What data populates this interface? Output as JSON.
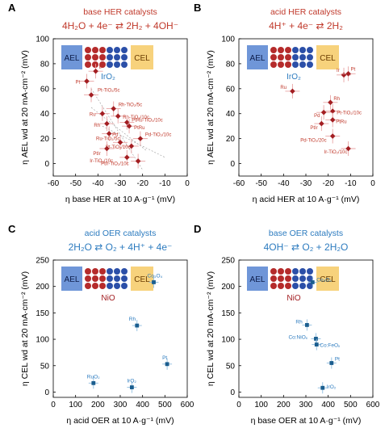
{
  "colors": {
    "her_accent": "#c0392b",
    "oer_accent": "#2c7bbf",
    "her_marker": "#a31e22",
    "oer_marker": "#1b5e8f",
    "her_error": "#e8a3a3",
    "oer_error": "#8fbde0",
    "axis": "#000000",
    "ael_box": "#6f96d8",
    "cel_box": "#f7d27c",
    "membrane_red": "#b52b2b",
    "membrane_blue": "#2b4fa8"
  },
  "chart_data": [
    {
      "panel": "A",
      "type": "scatter",
      "title": "base HER catalysts",
      "equation": "4H₂O + 4e⁻ ⇄ 2H₂ + 4OH⁻",
      "xlabel": "η base HER at 10 A·g⁻¹ (mV)",
      "ylabel": "η AEL wd at 20 mA·cm⁻² (mV)",
      "xlim": [
        -60,
        0
      ],
      "ylim": [
        -10,
        100
      ],
      "xticks": [
        "-60",
        "-50",
        "-40",
        "-30",
        "-20",
        "-10",
        "0"
      ],
      "yticks": [
        "0",
        "20",
        "40",
        "60",
        "80",
        "100"
      ],
      "schematic": {
        "left": "AEL",
        "right": "CEL",
        "catalyst": "IrO₂"
      },
      "points": [
        {
          "label": "Ir",
          "x": -41,
          "y": 74
        },
        {
          "label": "Pt",
          "x": -45,
          "y": 66
        },
        {
          "label": "Pt-TiO₂/5c",
          "x": -43,
          "y": 55
        },
        {
          "label": "Rh-TiO₂/5c",
          "x": -33,
          "y": 44
        },
        {
          "label": "Ru",
          "x": -38,
          "y": 40
        },
        {
          "label": "Rh-TiO₂/10c",
          "x": -31,
          "y": 38
        },
        {
          "label": "PtRu-TiO₂/10c",
          "x": -27,
          "y": 33
        },
        {
          "label": "Rh",
          "x": -36,
          "y": 32
        },
        {
          "label": "PtRu",
          "x": -26,
          "y": 30
        },
        {
          "label": "Pd",
          "x": -35,
          "y": 24
        },
        {
          "label": "Pd-TiO₂/10c",
          "x": -21,
          "y": 20
        },
        {
          "label": "Ru-TiO₂/5c",
          "x": -30,
          "y": 17
        },
        {
          "label": "Pt-TiO₂/10c",
          "x": -25,
          "y": 14
        },
        {
          "label": "PtIr",
          "x": -36,
          "y": 12
        },
        {
          "label": "Ir-TiO₂/10c",
          "x": -27,
          "y": 5
        },
        {
          "label": "PtIr-TiO₂/10c",
          "x": -22,
          "y": 2
        }
      ]
    },
    {
      "panel": "B",
      "type": "scatter",
      "title": "acid HER catalysts",
      "equation": "4H⁺ + 4e⁻ ⇄ 2H₂",
      "xlabel": "η acid HER at 10 A·g⁻¹ (mV)",
      "ylabel": "η AEL wd at 20 mA·cm⁻² (mV)",
      "xlim": [
        -60,
        0
      ],
      "ylim": [
        -10,
        100
      ],
      "xticks": [
        "-60",
        "-50",
        "-40",
        "-30",
        "-20",
        "-10",
        "0"
      ],
      "yticks": [
        "0",
        "20",
        "40",
        "60",
        "80",
        "100"
      ],
      "schematic": {
        "left": "AEL",
        "right": "CEL",
        "catalyst": "IrO₂"
      },
      "points": [
        {
          "label": "Ir",
          "x": -13,
          "y": 71
        },
        {
          "label": "Pt",
          "x": -11,
          "y": 72
        },
        {
          "label": "Ru",
          "x": -36,
          "y": 58
        },
        {
          "label": "Rh",
          "x": -19,
          "y": 49
        },
        {
          "label": "Pd",
          "x": -22,
          "y": 41
        },
        {
          "label": "Pt-TiO₂/10c",
          "x": -18,
          "y": 42
        },
        {
          "label": "PtRu",
          "x": -18,
          "y": 35
        },
        {
          "label": "PtIr",
          "x": -23,
          "y": 32
        },
        {
          "label": "Pd-TiO₂/20c",
          "x": -18,
          "y": 22
        },
        {
          "label": "Ir-TiO₂/10c",
          "x": -11,
          "y": 12
        }
      ]
    },
    {
      "panel": "C",
      "type": "scatter",
      "title": "acid OER catalysts",
      "equation": "2H₂O ⇄ O₂ + 4H⁺ + 4e⁻",
      "xlabel": "η acid OER at 10 A·g⁻¹ (mV)",
      "ylabel": "η CEL wd at 20 mA·cm⁻² (mV)",
      "xlim": [
        0,
        600
      ],
      "ylim": [
        -10,
        250
      ],
      "xticks": [
        "0",
        "100",
        "200",
        "300",
        "400",
        "500",
        "600"
      ],
      "yticks": [
        "0",
        "50",
        "100",
        "150",
        "200",
        "250"
      ],
      "schematic": {
        "left": "AEL",
        "right": "CEL",
        "catalyst": "NiO"
      },
      "points": [
        {
          "label": "Co₃O₄",
          "x": 450,
          "y": 208
        },
        {
          "label": "Rh",
          "x": 375,
          "y": 126
        },
        {
          "label": "Pt",
          "x": 510,
          "y": 53
        },
        {
          "label": "RuO₂",
          "x": 180,
          "y": 17
        },
        {
          "label": "IrO₂",
          "x": 352,
          "y": 9
        }
      ]
    },
    {
      "panel": "D",
      "type": "scatter",
      "title": "base OER catalysts",
      "equation": "4OH⁻ ⇄ O₂ + 2H₂O",
      "xlabel": "η base OER at 10 A·g⁻¹ (mV)",
      "ylabel": "η CEL wd at 20 mA·cm⁻² (mV)",
      "xlim": [
        0,
        600
      ],
      "ylim": [
        -10,
        250
      ],
      "xticks": [
        "0",
        "100",
        "200",
        "300",
        "400",
        "500",
        "600"
      ],
      "yticks": [
        "0",
        "50",
        "100",
        "150",
        "200",
        "250"
      ],
      "schematic": {
        "left": "AEL",
        "right": "CEL",
        "catalyst": "NiO"
      },
      "points": [
        {
          "label": "Co₃O₄",
          "x": 330,
          "y": 208
        },
        {
          "label": "Rh",
          "x": 305,
          "y": 127
        },
        {
          "label": "Co:NiOₓ",
          "x": 345,
          "y": 101
        },
        {
          "label": "Co:FeOₓ",
          "x": 348,
          "y": 90
        },
        {
          "label": "Pt",
          "x": 415,
          "y": 55
        },
        {
          "label": "IrO₂",
          "x": 375,
          "y": 8
        }
      ]
    }
  ]
}
